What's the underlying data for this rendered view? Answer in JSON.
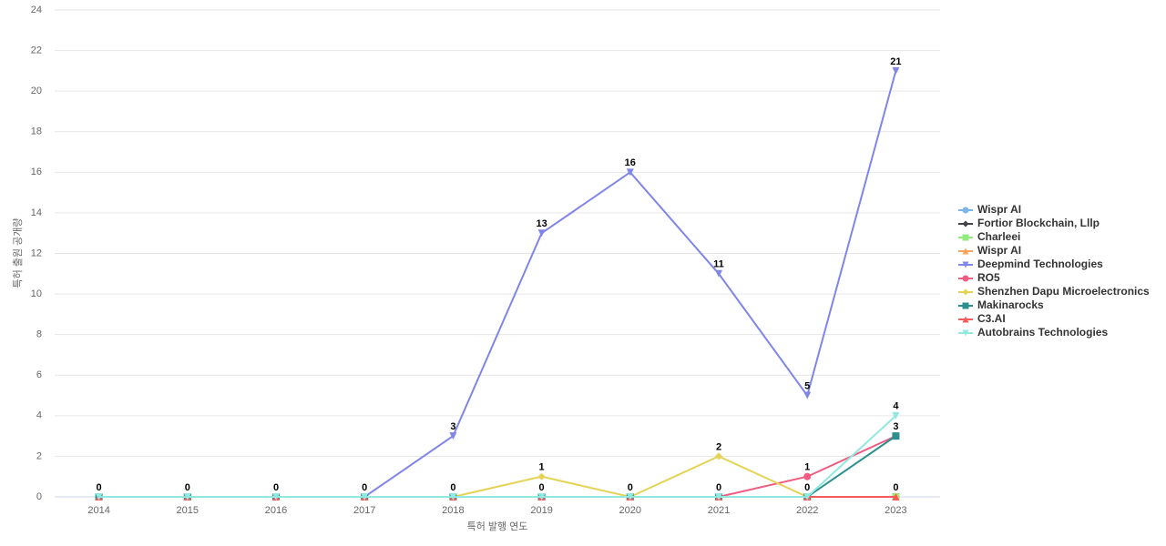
{
  "chart_data": {
    "type": "line",
    "x_label": "특허 발행 연도",
    "y_label": "특허 출원 공개량",
    "categories": [
      "2014",
      "2015",
      "2016",
      "2017",
      "2018",
      "2019",
      "2020",
      "2021",
      "2022",
      "2023"
    ],
    "ylim": [
      0,
      24
    ],
    "yticks": [
      0,
      2,
      4,
      6,
      8,
      10,
      12,
      14,
      16,
      18,
      20,
      22,
      24
    ],
    "grid": true,
    "legend": "right",
    "series": [
      {
        "name": "Wispr AI",
        "color": "#7cb5ec",
        "marker": "circle",
        "values": [
          0,
          0,
          0,
          0,
          0,
          0,
          0,
          0,
          0,
          0
        ]
      },
      {
        "name": "Fortior Blockchain, Lllp",
        "color": "#434348",
        "marker": "diamond",
        "values": [
          0,
          0,
          0,
          0,
          0,
          0,
          0,
          0,
          0,
          0
        ]
      },
      {
        "name": "Charleei",
        "color": "#90ed7d",
        "marker": "square",
        "values": [
          0,
          0,
          0,
          0,
          0,
          0,
          0,
          0,
          0,
          0
        ]
      },
      {
        "name": "Wispr AI",
        "color": "#f7a35c",
        "marker": "triangle",
        "values": [
          0,
          0,
          0,
          0,
          0,
          0,
          0,
          0,
          0,
          0
        ]
      },
      {
        "name": "Deepmind Technologies",
        "color": "#8085e9",
        "marker": "triangle-down",
        "values": [
          0,
          0,
          0,
          0,
          3,
          13,
          16,
          11,
          5,
          21
        ]
      },
      {
        "name": "RO5",
        "color": "#f15c80",
        "marker": "circle",
        "values": [
          0,
          0,
          0,
          0,
          0,
          0,
          0,
          0,
          1,
          3
        ]
      },
      {
        "name": "Shenzhen Dapu Microelectronics",
        "color": "#e4d354",
        "marker": "diamond",
        "values": [
          0,
          0,
          0,
          0,
          0,
          1,
          0,
          2,
          0,
          0
        ]
      },
      {
        "name": "Makinarocks",
        "color": "#2b908f",
        "marker": "square",
        "values": [
          0,
          0,
          0,
          0,
          0,
          0,
          0,
          0,
          0,
          3
        ]
      },
      {
        "name": "C3.AI",
        "color": "#f45b5b",
        "marker": "triangle",
        "values": [
          0,
          0,
          0,
          0,
          0,
          0,
          0,
          0,
          0,
          0
        ]
      },
      {
        "name": "Autobrains Technologies",
        "color": "#91e8e1",
        "marker": "triangle-down",
        "values": [
          0,
          0,
          0,
          0,
          0,
          0,
          0,
          0,
          0,
          4
        ]
      }
    ]
  }
}
